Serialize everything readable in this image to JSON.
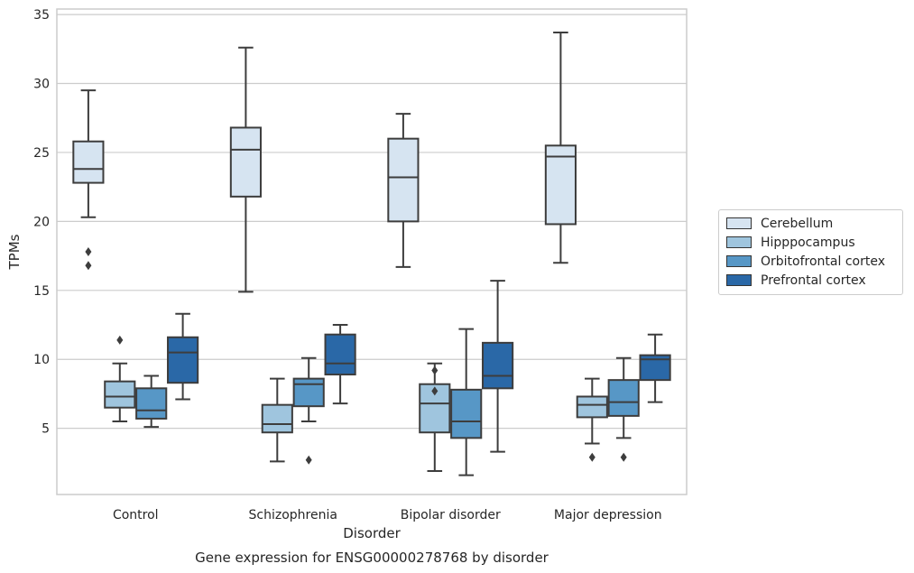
{
  "chart_data": {
    "type": "box",
    "title": "Gene expression for ENSG00000278768 by disorder",
    "xlabel": "Disorder",
    "ylabel": "TPMs",
    "ylim": [
      0.2,
      35.4
    ],
    "yticks": [
      5,
      10,
      15,
      20,
      25,
      30,
      35
    ],
    "grid": "horizontal",
    "legend_position": "right",
    "categories": [
      "Control",
      "Schizophrenia",
      "Bipolar disorder",
      "Major depression"
    ],
    "series": [
      {
        "name": "Cerebellum",
        "color": "#d6e4f1",
        "boxes": [
          {
            "min": 20.3,
            "q1": 22.8,
            "median": 23.8,
            "q3": 25.8,
            "max": 29.5,
            "outliers": [
              16.8,
              17.8
            ]
          },
          {
            "min": 14.9,
            "q1": 21.8,
            "median": 25.2,
            "q3": 26.8,
            "max": 32.6,
            "outliers": []
          },
          {
            "min": 16.7,
            "q1": 20.0,
            "median": 23.2,
            "q3": 26.0,
            "max": 27.8,
            "outliers": []
          },
          {
            "min": 17.0,
            "q1": 19.8,
            "median": 24.7,
            "q3": 25.5,
            "max": 33.7,
            "outliers": []
          }
        ]
      },
      {
        "name": "Hipppocampus",
        "color": "#9fc5de",
        "boxes": [
          {
            "min": 5.5,
            "q1": 6.5,
            "median": 7.3,
            "q3": 8.4,
            "max": 9.7,
            "outliers": [
              11.4
            ]
          },
          {
            "min": 2.6,
            "q1": 4.7,
            "median": 5.3,
            "q3": 6.7,
            "max": 8.6,
            "outliers": []
          },
          {
            "min": 1.9,
            "q1": 4.7,
            "median": 6.8,
            "q3": 8.2,
            "max": 9.7,
            "outliers": [
              7.7,
              9.2
            ]
          },
          {
            "min": 3.9,
            "q1": 5.8,
            "median": 6.7,
            "q3": 7.3,
            "max": 8.6,
            "outliers": [
              2.9
            ]
          }
        ]
      },
      {
        "name": "Orbitofrontal cortex",
        "color": "#5797c6",
        "boxes": [
          {
            "min": 5.1,
            "q1": 5.7,
            "median": 6.3,
            "q3": 7.9,
            "max": 8.8,
            "outliers": []
          },
          {
            "min": 5.5,
            "q1": 6.6,
            "median": 8.2,
            "q3": 8.6,
            "max": 10.1,
            "outliers": [
              2.7
            ]
          },
          {
            "min": 1.6,
            "q1": 4.3,
            "median": 5.5,
            "q3": 7.8,
            "max": 12.2,
            "outliers": []
          },
          {
            "min": 4.3,
            "q1": 5.9,
            "median": 6.9,
            "q3": 8.5,
            "max": 10.1,
            "outliers": [
              2.9
            ]
          }
        ]
      },
      {
        "name": "Prefrontal cortex",
        "color": "#2a68a7",
        "boxes": [
          {
            "min": 7.1,
            "q1": 8.3,
            "median": 10.5,
            "q3": 11.6,
            "max": 13.3,
            "outliers": []
          },
          {
            "min": 6.8,
            "q1": 8.9,
            "median": 9.7,
            "q3": 11.8,
            "max": 12.5,
            "outliers": []
          },
          {
            "min": 3.3,
            "q1": 7.9,
            "median": 8.8,
            "q3": 11.2,
            "max": 15.7,
            "outliers": []
          },
          {
            "min": 6.9,
            "q1": 8.5,
            "median": 10.0,
            "q3": 10.3,
            "max": 11.8,
            "outliers": []
          }
        ]
      }
    ]
  }
}
